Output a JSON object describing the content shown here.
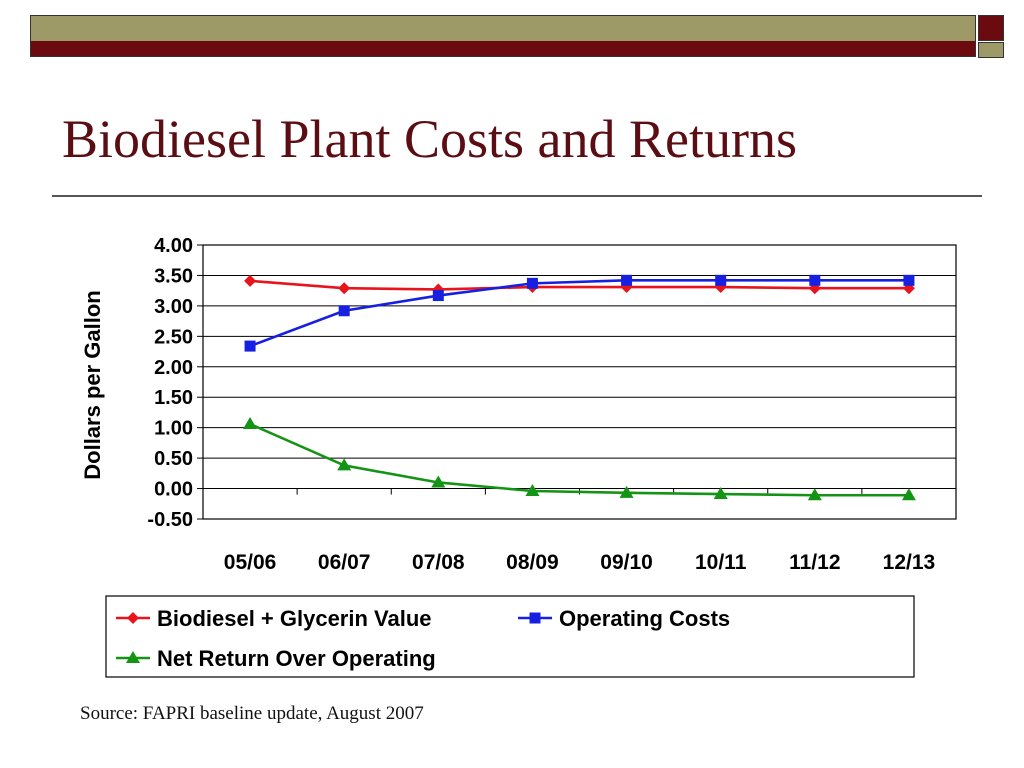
{
  "slide": {
    "title": "Biodiesel Plant Costs and Returns",
    "source": "Source: FAPRI baseline update, August 2007"
  },
  "colors": {
    "olive": "#9e9a67",
    "maroon": "#6b0a0f",
    "title": "#5a0d12"
  },
  "chart_data": {
    "type": "line",
    "title": "",
    "xlabel": "",
    "ylabel": "Dollars per Gallon",
    "categories": [
      "05/06",
      "06/07",
      "07/08",
      "08/09",
      "09/10",
      "10/11",
      "11/12",
      "12/13"
    ],
    "ylim": [
      -0.5,
      4.0
    ],
    "yticks": [
      4.0,
      3.5,
      3.0,
      2.5,
      2.0,
      1.5,
      1.0,
      0.5,
      0.0,
      -0.5
    ],
    "ytick_labels": [
      "4.00",
      "3.50",
      "3.00",
      "2.50",
      "2.00",
      "1.50",
      "1.00",
      "0.50",
      "0.00",
      "-0.50"
    ],
    "grid": true,
    "legend": "bottom",
    "series": [
      {
        "name": "Biodiesel + Glycerin Value",
        "color": "#e8141c",
        "marker": "diamond",
        "values": [
          3.41,
          3.29,
          3.27,
          3.31,
          3.31,
          3.31,
          3.29,
          3.29
        ]
      },
      {
        "name": "Operating Costs",
        "color": "#1720e0",
        "marker": "square",
        "values": [
          2.34,
          2.92,
          3.17,
          3.37,
          3.42,
          3.42,
          3.42,
          3.42
        ]
      },
      {
        "name": "Net Return Over Operating",
        "color": "#149414",
        "marker": "triangle",
        "values": [
          1.06,
          0.38,
          0.1,
          -0.04,
          -0.07,
          -0.09,
          -0.11,
          -0.11
        ]
      }
    ]
  }
}
